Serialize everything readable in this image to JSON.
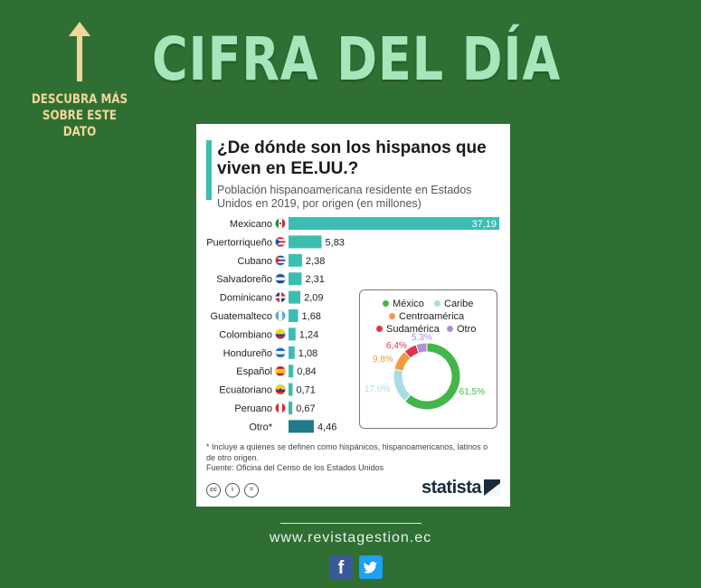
{
  "header": {
    "headline": "CIFRA DEL DÍA",
    "cta": "DESCUBRA MÁS SOBRE ESTE DATO"
  },
  "card": {
    "title": "¿De dónde son los hispanos que viven en EE.UU.?",
    "subtitle": "Población hispanoamericana residente en Estados Unidos en 2019, por origen (en millones)",
    "footnote": "* Incluye a quienes se definen como hispánicos, hispanoamericanos, latinos o de otro origen.",
    "source": "Fuente: Oficina del Censo de los Estados Unidos",
    "license_icons": [
      "cc",
      "by",
      "nd"
    ],
    "brand": "statista"
  },
  "chart_data": [
    {
      "type": "bar",
      "orientation": "horizontal",
      "categories": [
        "Mexicano",
        "Puertorriqueño",
        "Cubano",
        "Salvadoreño",
        "Dominicano",
        "Guatemalteco",
        "Colombiano",
        "Hondureño",
        "Español",
        "Ecuatoriano",
        "Peruano",
        "Otro*"
      ],
      "values": [
        37.19,
        5.83,
        2.38,
        2.31,
        2.09,
        1.68,
        1.24,
        1.08,
        0.84,
        0.71,
        0.67,
        4.46
      ],
      "value_labels": [
        "37,19",
        "5,83",
        "2,38",
        "2,31",
        "2,09",
        "1,68",
        "1,24",
        "1,08",
        "0,84",
        "0,71",
        "0,67",
        "4,46"
      ],
      "flags": [
        "mexico",
        "puerto-rico",
        "cuba",
        "el-salvador",
        "dominican-republic",
        "guatemala",
        "colombia",
        "honduras",
        "spain",
        "ecuador",
        "peru",
        null
      ],
      "bar_color": "#3cbdb1",
      "highlight_color": "#1f7a89",
      "highlight_category": "Otro*"
    },
    {
      "type": "pie",
      "style": "donut",
      "categories": [
        "México",
        "Caribe",
        "Centroamérica",
        "Sudamérica",
        "Otro"
      ],
      "values": [
        61.5,
        17.0,
        9.8,
        6.4,
        5.3
      ],
      "value_labels": [
        "61,5%",
        "17,0%",
        "9,8%",
        "6,4%",
        "5,3%"
      ],
      "colors": [
        "#43b649",
        "#a6dfe1",
        "#f19a3e",
        "#e0334b",
        "#b08fd6"
      ],
      "legend": "top"
    }
  ],
  "footer": {
    "website": "www.revistagestion.ec",
    "social": [
      "facebook-icon",
      "twitter-icon"
    ],
    "social_colors": [
      "#3b5998",
      "#1da1f2"
    ]
  }
}
